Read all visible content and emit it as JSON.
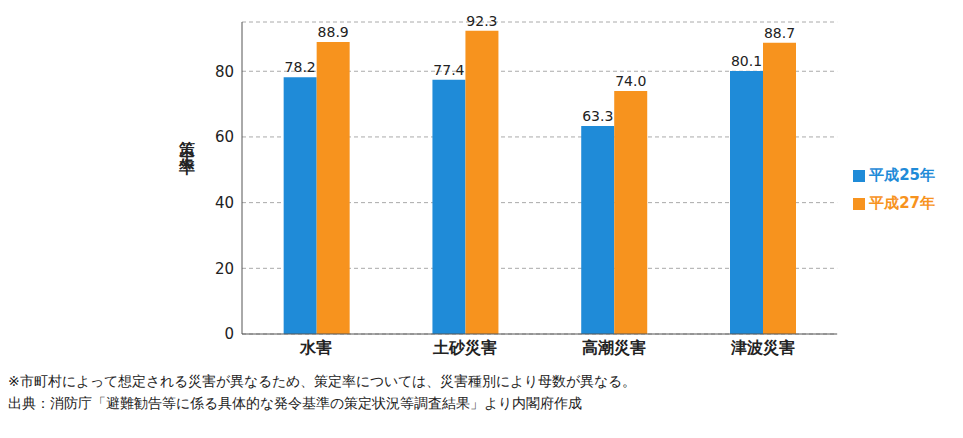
{
  "chart_data": {
    "type": "bar",
    "y_label": "策定率",
    "categories": [
      "水害",
      "土砂災害",
      "高潮災害",
      "津波災害"
    ],
    "series": [
      {
        "name": "平成25年",
        "color": "#1f8bd8",
        "values": [
          78.2,
          77.4,
          63.3,
          80.1
        ],
        "value_labels": [
          "78.2",
          "77.4",
          "63.3",
          "80.1"
        ]
      },
      {
        "name": "平成27年",
        "color": "#f7931e",
        "values": [
          88.9,
          92.3,
          74.0,
          88.7
        ],
        "value_labels": [
          "88.9",
          "92.3",
          "74.0",
          "88.7"
        ]
      }
    ],
    "ylim": [
      0,
      95
    ],
    "yticks": [
      0,
      20,
      40,
      60,
      80
    ],
    "grid": true,
    "legend": "right",
    "data_labels": true,
    "notes": [
      "※市町村によって想定される災害が異なるため、策定率については、災害種別により母数が異なる。",
      "出典：消防庁「避難勧告等に係る具体的な発令基準の策定状況等調査結果」より内閣府作成"
    ]
  }
}
